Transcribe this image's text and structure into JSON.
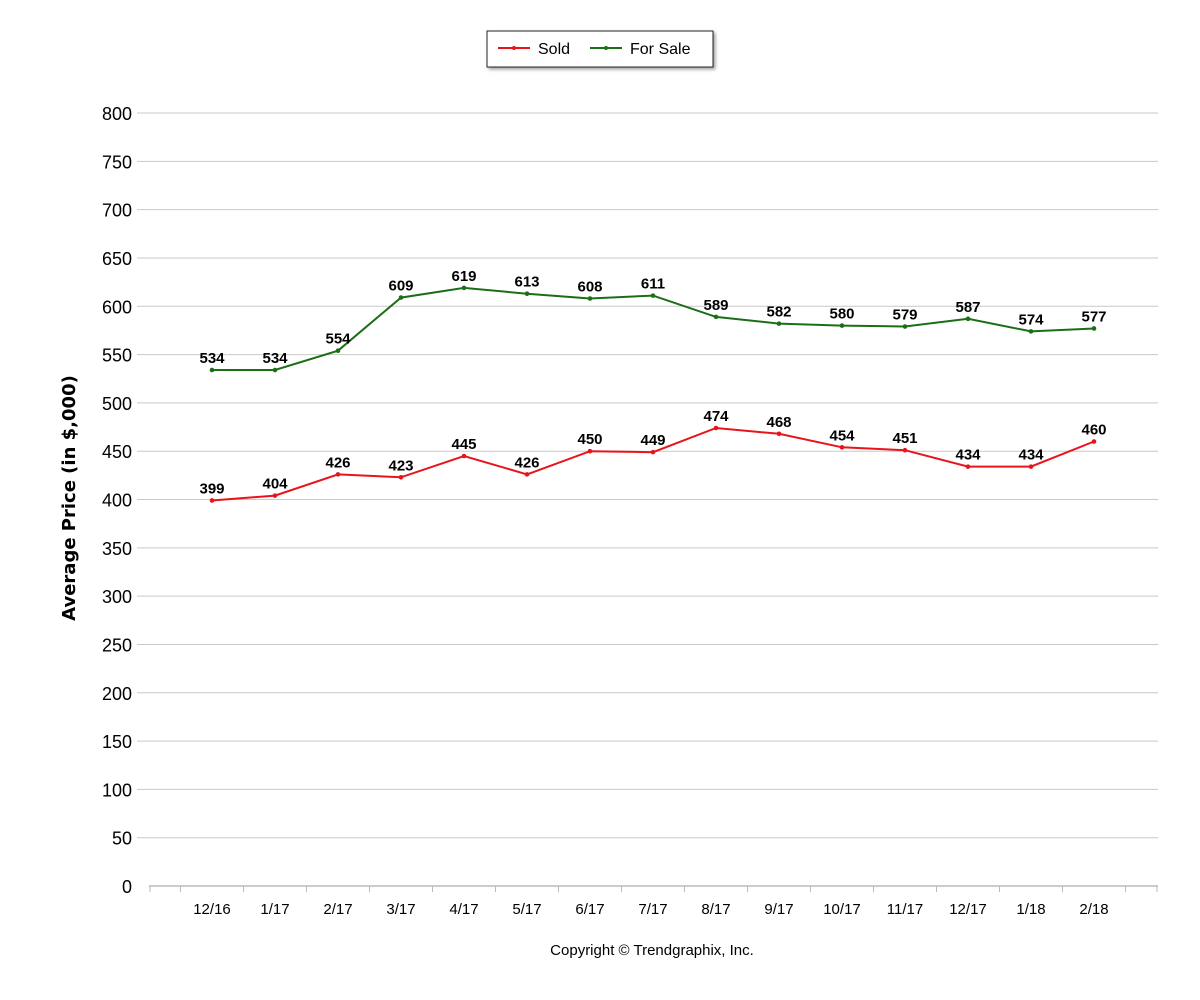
{
  "chart_data": {
    "type": "line",
    "title": "",
    "xlabel": "",
    "ylabel": "Average Price (in $,000)",
    "ylim": [
      0,
      800
    ],
    "yticks": [
      0,
      50,
      100,
      150,
      200,
      250,
      300,
      350,
      400,
      450,
      500,
      550,
      600,
      650,
      700,
      750,
      800
    ],
    "grid": true,
    "legend_position": "top-center",
    "categories": [
      "12/16",
      "1/17",
      "2/17",
      "3/17",
      "4/17",
      "5/17",
      "6/17",
      "7/17",
      "8/17",
      "9/17",
      "10/17",
      "11/17",
      "12/17",
      "1/18",
      "2/18"
    ],
    "series": [
      {
        "name": "Sold",
        "color": "#e8141c",
        "values": [
          399,
          404,
          426,
          423,
          445,
          426,
          450,
          449,
          474,
          468,
          454,
          451,
          434,
          434,
          460
        ]
      },
      {
        "name": "For Sale",
        "color": "#1b6e16",
        "values": [
          534,
          534,
          554,
          609,
          619,
          613,
          608,
          611,
          589,
          582,
          580,
          579,
          587,
          574,
          577
        ]
      }
    ],
    "footer": "Copyright © Trendgraphix, Inc."
  }
}
